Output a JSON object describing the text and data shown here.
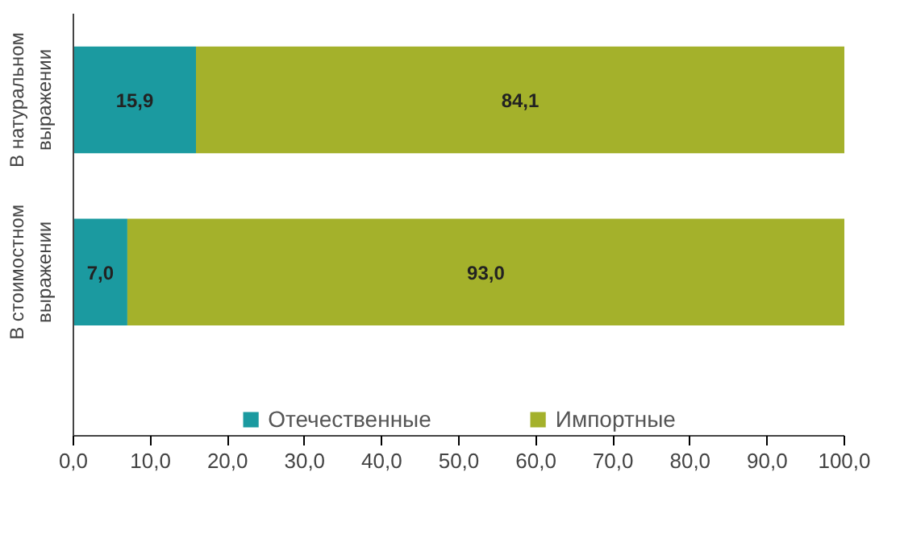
{
  "chart_data": {
    "type": "bar",
    "orientation": "horizontal",
    "stacked": true,
    "categories": [
      "В натуральном выражении",
      "В стоимостном выражении"
    ],
    "series": [
      {
        "name": "Отечественные",
        "color": "#1b9aa0",
        "values": [
          15.9,
          7.0
        ],
        "value_labels": [
          "15,9",
          "7,0"
        ]
      },
      {
        "name": "Импортные",
        "color": "#a4b12b",
        "values": [
          84.1,
          93.0
        ],
        "value_labels": [
          "84,1",
          "93,0"
        ]
      }
    ],
    "xlim": [
      0,
      100
    ],
    "xticks": [
      {
        "value": 0,
        "label": "0,0"
      },
      {
        "value": 10,
        "label": "10,0"
      },
      {
        "value": 20,
        "label": "20,0"
      },
      {
        "value": 30,
        "label": "30,0"
      },
      {
        "value": 40,
        "label": "40,0"
      },
      {
        "value": 50,
        "label": "50,0"
      },
      {
        "value": 60,
        "label": "60,0"
      },
      {
        "value": 70,
        "label": "70,0"
      },
      {
        "value": 80,
        "label": "80,0"
      },
      {
        "value": 90,
        "label": "90,0"
      },
      {
        "value": 100,
        "label": "100,0"
      }
    ],
    "grid": false,
    "legend": "bottom"
  }
}
